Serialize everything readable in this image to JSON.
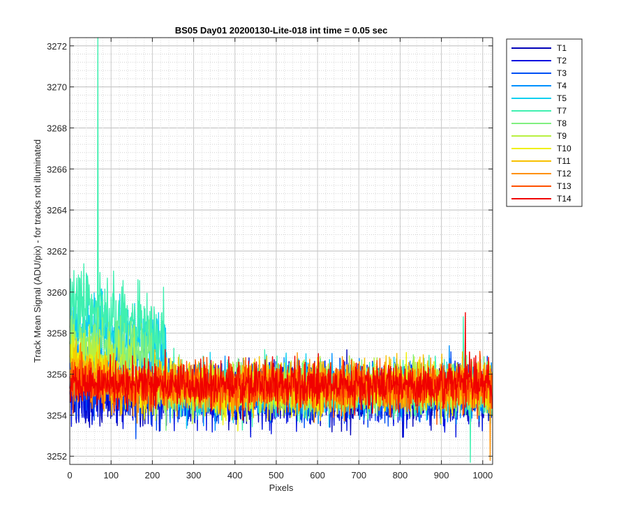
{
  "chart_data": {
    "type": "line",
    "title": "BS05 Day01 20200130-Lite-018 int time = 0.05 sec",
    "xlabel": "Pixels",
    "ylabel": "Track Mean Signal (ADU/pix) - for tracks not illuminated",
    "xlim": [
      0,
      1024
    ],
    "ylim": [
      3251.6,
      3272.4
    ],
    "x_ticks": [
      0,
      100,
      200,
      300,
      400,
      500,
      600,
      700,
      800,
      900,
      1000
    ],
    "y_ticks": [
      3252,
      3254,
      3256,
      3258,
      3260,
      3262,
      3264,
      3266,
      3268,
      3270,
      3272
    ],
    "grid": "major and minor, dotted",
    "legend_position": "outside-right-top",
    "n_points": 1024,
    "series": [
      {
        "name": "T1",
        "color": "#0000b8",
        "mean": 3255.0,
        "noise": 1.05,
        "early_amp": 0.0,
        "early_len": 0
      },
      {
        "name": "T2",
        "color": "#0010e0",
        "mean": 3255.0,
        "noise": 1.0,
        "early_amp": 0.0,
        "early_len": 0
      },
      {
        "name": "T3",
        "color": "#0050f5",
        "mean": 3255.1,
        "noise": 0.95,
        "early_amp": 0.5,
        "early_len": 120
      },
      {
        "name": "T4",
        "color": "#0090ff",
        "mean": 3255.2,
        "noise": 0.9,
        "early_amp": 1.5,
        "early_len": 230
      },
      {
        "name": "T5",
        "color": "#10d0f0",
        "mean": 3255.3,
        "noise": 0.9,
        "early_amp": 2.8,
        "early_len": 235
      },
      {
        "name": "T7",
        "color": "#40f0b0",
        "mean": 3255.3,
        "noise": 0.9,
        "early_amp": 3.6,
        "early_len": 230
      },
      {
        "name": "T8",
        "color": "#80f080",
        "mean": 3255.3,
        "noise": 0.85,
        "early_amp": 2.2,
        "early_len": 200
      },
      {
        "name": "T9",
        "color": "#b8f040",
        "mean": 3255.3,
        "noise": 0.85,
        "early_amp": 1.6,
        "early_len": 160
      },
      {
        "name": "T10",
        "color": "#f0f000",
        "mean": 3255.3,
        "noise": 0.85,
        "early_amp": 1.0,
        "early_len": 120
      },
      {
        "name": "T11",
        "color": "#f8c000",
        "mean": 3255.4,
        "noise": 0.85,
        "early_amp": 0.6,
        "early_len": 100
      },
      {
        "name": "T12",
        "color": "#ff9000",
        "mean": 3255.4,
        "noise": 0.8,
        "early_amp": 0.4,
        "early_len": 80
      },
      {
        "name": "T13",
        "color": "#ff5000",
        "mean": 3255.4,
        "noise": 0.8,
        "early_amp": 0.2,
        "early_len": 60
      },
      {
        "name": "T14",
        "color": "#f00000",
        "mean": 3255.5,
        "noise": 0.75,
        "early_amp": 0.1,
        "early_len": 40
      }
    ],
    "notable_points": [
      {
        "series": "T7",
        "x": 68,
        "y": 3272.4
      },
      {
        "series": "T7",
        "x": 953,
        "y": 3258.8
      },
      {
        "series": "T14",
        "x": 958,
        "y": 3259.0
      },
      {
        "series": "T7",
        "x": 970,
        "y": 3251.7
      },
      {
        "series": "T12",
        "x": 1018,
        "y": 3251.8
      }
    ]
  }
}
